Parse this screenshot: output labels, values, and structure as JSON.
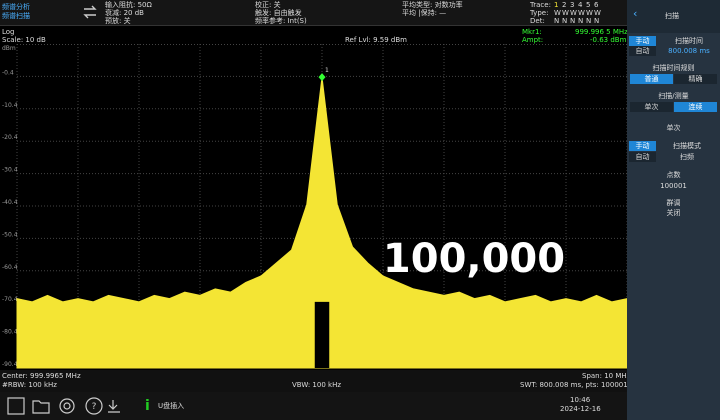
{
  "header": {
    "mode": "频谱分析",
    "submode": "频谱扫描",
    "col1": [
      "输入阻抗: 50Ω",
      "衰减: 20 dB",
      "预放: 关"
    ],
    "col2": [
      "校正: 关",
      "触发: 自由触发",
      "频率参考: Int(S)"
    ],
    "col3": [
      "平均类型: 对数功率",
      "平均 |保持: —"
    ],
    "trace_rows": [
      [
        "Trace:",
        "1",
        "2",
        "3",
        "4",
        "5",
        "6"
      ],
      [
        "Type:",
        "W",
        "W",
        "W",
        "W",
        "W",
        "W"
      ],
      [
        "Det:",
        "N",
        "N",
        "N",
        "N",
        "N",
        "N"
      ]
    ]
  },
  "info_bar": {
    "scale_type": "Log",
    "scale": "Scale: 10 dB",
    "ref_level": "Ref Lvl: 9.59 dBm",
    "mkr_label": "Mkr1:",
    "mkr_freq": "999.996 5 MHz",
    "ampt_label": "Ampt:",
    "ampt": "-0.63 dBm"
  },
  "chart_data": {
    "type": "area",
    "y_unit": "dBm",
    "ylim": [
      -90.41,
      9.59
    ],
    "yticks": [
      {
        "value": -0.41,
        "label": "-0.4"
      },
      {
        "value": -10.41,
        "label": "-10.4"
      },
      {
        "value": -20.41,
        "label": "-20.4"
      },
      {
        "value": -30.41,
        "label": "-30.4"
      },
      {
        "value": -40.41,
        "label": "-40.4"
      },
      {
        "value": -50.41,
        "label": "-50.4"
      },
      {
        "value": -60.41,
        "label": "-60.4"
      },
      {
        "value": -70.41,
        "label": "-70.4"
      },
      {
        "value": -80.41,
        "label": "-80.4"
      },
      {
        "value": -90.41,
        "label": "-90.4"
      }
    ],
    "grid": true,
    "color": "#f4e534",
    "marker_label": "1",
    "annotation": "100,000",
    "values": [
      -69,
      -70,
      -68,
      -70,
      -69,
      -70,
      -68,
      -69,
      -70,
      -68,
      -69,
      -67,
      -68,
      -66,
      -67,
      -64,
      -62,
      -58,
      -54,
      -40,
      -0.63,
      -40,
      -53,
      -58,
      -62,
      -64,
      -66,
      -67,
      -68,
      -67,
      -69,
      -68,
      -70,
      -69,
      -68,
      -70,
      -69,
      -70,
      -68,
      -70,
      -69
    ]
  },
  "footer": {
    "center": "Center: 999.9965 MHz",
    "rbw": "#RBW: 100 kHz",
    "vbw": "VBW: 100 kHz",
    "span": "Span: 10 MHz",
    "swt": "SWT: 800.008 ms, pts: 100001"
  },
  "taskbar": {
    "message": "U盘插入",
    "time": "10:46",
    "date": "2024-12-16"
  },
  "sidebar": {
    "title": "扫描",
    "manual": "手动",
    "auto": "自动",
    "sweep_time": "扫描时间",
    "sweep_time_value": "800.008 ms",
    "rule": "扫描时间规则",
    "normal": "普通",
    "precise": "精确",
    "sweep_measure": "扫描/测量",
    "single": "单次",
    "continuous": "连续",
    "single_btn": "单次",
    "manual2": "手动",
    "auto2": "自动",
    "sweep_mode": "扫描模式",
    "sweep_mode_value": "扫频",
    "points": "点数",
    "points_value": "100001",
    "gate": "群调",
    "gate_value": "关闭"
  }
}
